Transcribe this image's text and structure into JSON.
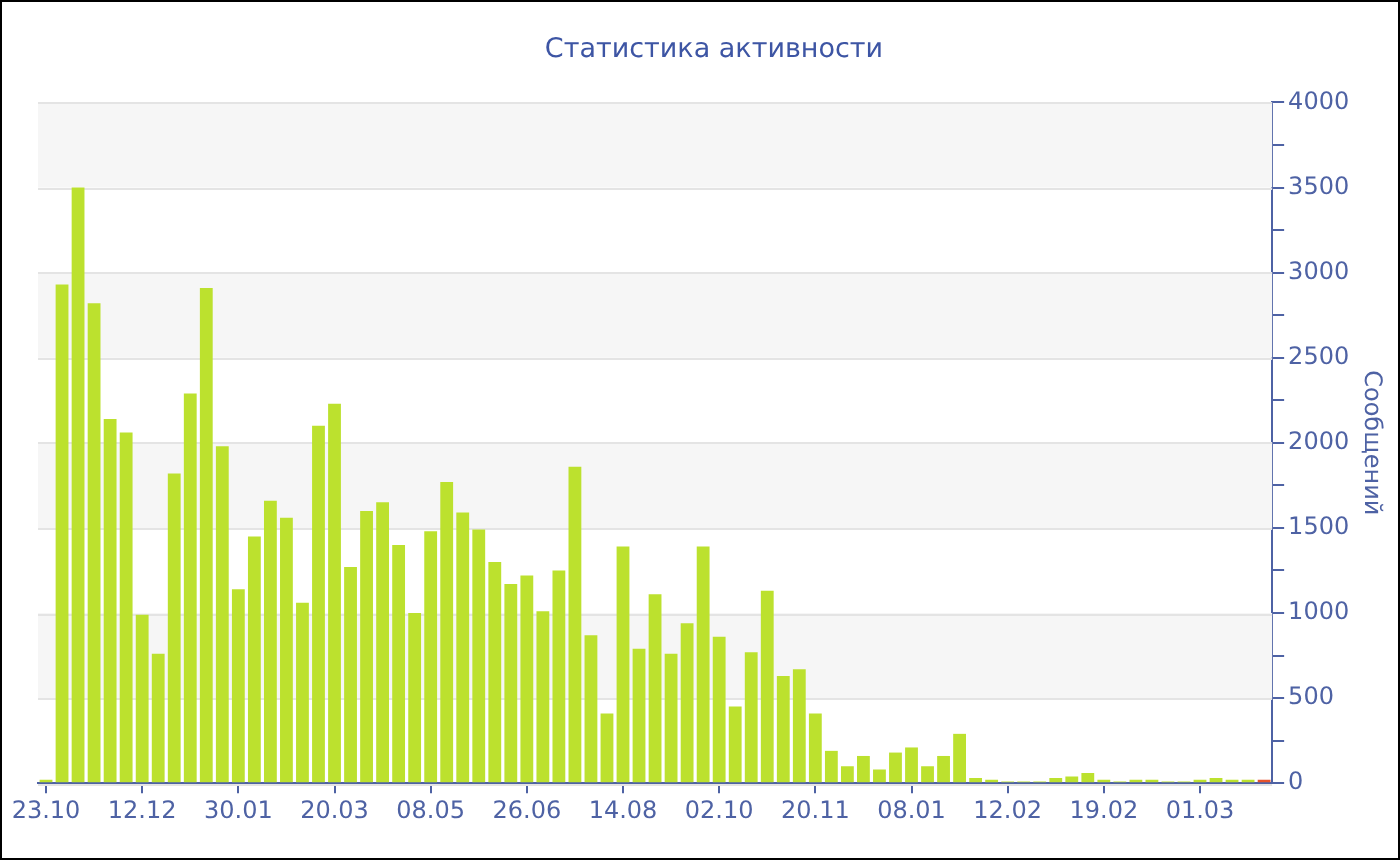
{
  "chart_data": {
    "type": "bar",
    "title": "Статистика активности",
    "ylabel": "Сообщений",
    "categories": [
      "23.10",
      null,
      null,
      null,
      null,
      null,
      "12.12",
      null,
      null,
      null,
      null,
      null,
      "30.01",
      null,
      null,
      null,
      null,
      null,
      "20.03",
      null,
      null,
      null,
      null,
      null,
      "08.05",
      null,
      null,
      null,
      null,
      null,
      "26.06",
      null,
      null,
      null,
      null,
      null,
      "14.08",
      null,
      null,
      null,
      null,
      null,
      "02.10",
      null,
      null,
      null,
      null,
      null,
      "20.11",
      null,
      null,
      null,
      null,
      null,
      "08.01",
      null,
      null,
      null,
      null,
      null,
      "12.02",
      null,
      null,
      null,
      null,
      null,
      "19.02",
      null,
      null,
      null,
      null,
      null,
      "01.03",
      null,
      null,
      null,
      null
    ],
    "values": [
      20,
      2930,
      3500,
      2820,
      2140,
      2060,
      990,
      760,
      1820,
      2290,
      2910,
      1980,
      1140,
      1450,
      1660,
      1560,
      1060,
      2100,
      2230,
      1270,
      1600,
      1650,
      1400,
      1000,
      1480,
      1770,
      1590,
      1490,
      1300,
      1170,
      1220,
      1010,
      1250,
      1860,
      870,
      410,
      1390,
      790,
      1110,
      760,
      940,
      1390,
      860,
      450,
      770,
      1130,
      630,
      670,
      410,
      190,
      100,
      160,
      80,
      180,
      210,
      100,
      160,
      290,
      30,
      20,
      10,
      10,
      10,
      30,
      40,
      60,
      20,
      10,
      20,
      20,
      10,
      10,
      20,
      30,
      20,
      20,
      20
    ],
    "colors": [
      "#bce12e",
      "#bce12e",
      "#bce12e",
      "#bce12e",
      "#bce12e",
      "#bce12e",
      "#bce12e",
      "#bce12e",
      "#bce12e",
      "#bce12e",
      "#bce12e",
      "#bce12e",
      "#bce12e",
      "#bce12e",
      "#bce12e",
      "#bce12e",
      "#bce12e",
      "#bce12e",
      "#bce12e",
      "#bce12e",
      "#bce12e",
      "#bce12e",
      "#bce12e",
      "#bce12e",
      "#bce12e",
      "#bce12e",
      "#bce12e",
      "#bce12e",
      "#bce12e",
      "#bce12e",
      "#bce12e",
      "#bce12e",
      "#bce12e",
      "#bce12e",
      "#bce12e",
      "#bce12e",
      "#bce12e",
      "#bce12e",
      "#bce12e",
      "#bce12e",
      "#bce12e",
      "#bce12e",
      "#bce12e",
      "#bce12e",
      "#bce12e",
      "#bce12e",
      "#bce12e",
      "#bce12e",
      "#bce12e",
      "#bce12e",
      "#bce12e",
      "#bce12e",
      "#bce12e",
      "#bce12e",
      "#bce12e",
      "#bce12e",
      "#bce12e",
      "#bce12e",
      "#bce12e",
      "#bce12e",
      "#bce12e",
      "#bce12e",
      "#bce12e",
      "#bce12e",
      "#bce12e",
      "#bce12e",
      "#bce12e",
      "#bce12e",
      "#bce12e",
      "#bce12e",
      "#bce12e",
      "#bce12e",
      "#bce12e",
      "#bce12e",
      "#bce12e",
      "#bce12e",
      "#e6522c"
    ],
    "ylim": [
      0,
      4000
    ],
    "yticks": [
      0,
      {
        "value": 250,
        "label": null
      },
      500,
      {
        "value": 750,
        "label": null
      },
      1000,
      {
        "value": 1250,
        "label": null
      },
      1500,
      {
        "value": 1750,
        "label": null
      },
      2000,
      {
        "value": 2250,
        "label": null
      },
      2500,
      {
        "value": 2750,
        "label": null
      },
      3000,
      {
        "value": 3250,
        "label": null
      },
      3500,
      {
        "value": 3750,
        "label": null
      },
      4000
    ],
    "grid": "y"
  }
}
